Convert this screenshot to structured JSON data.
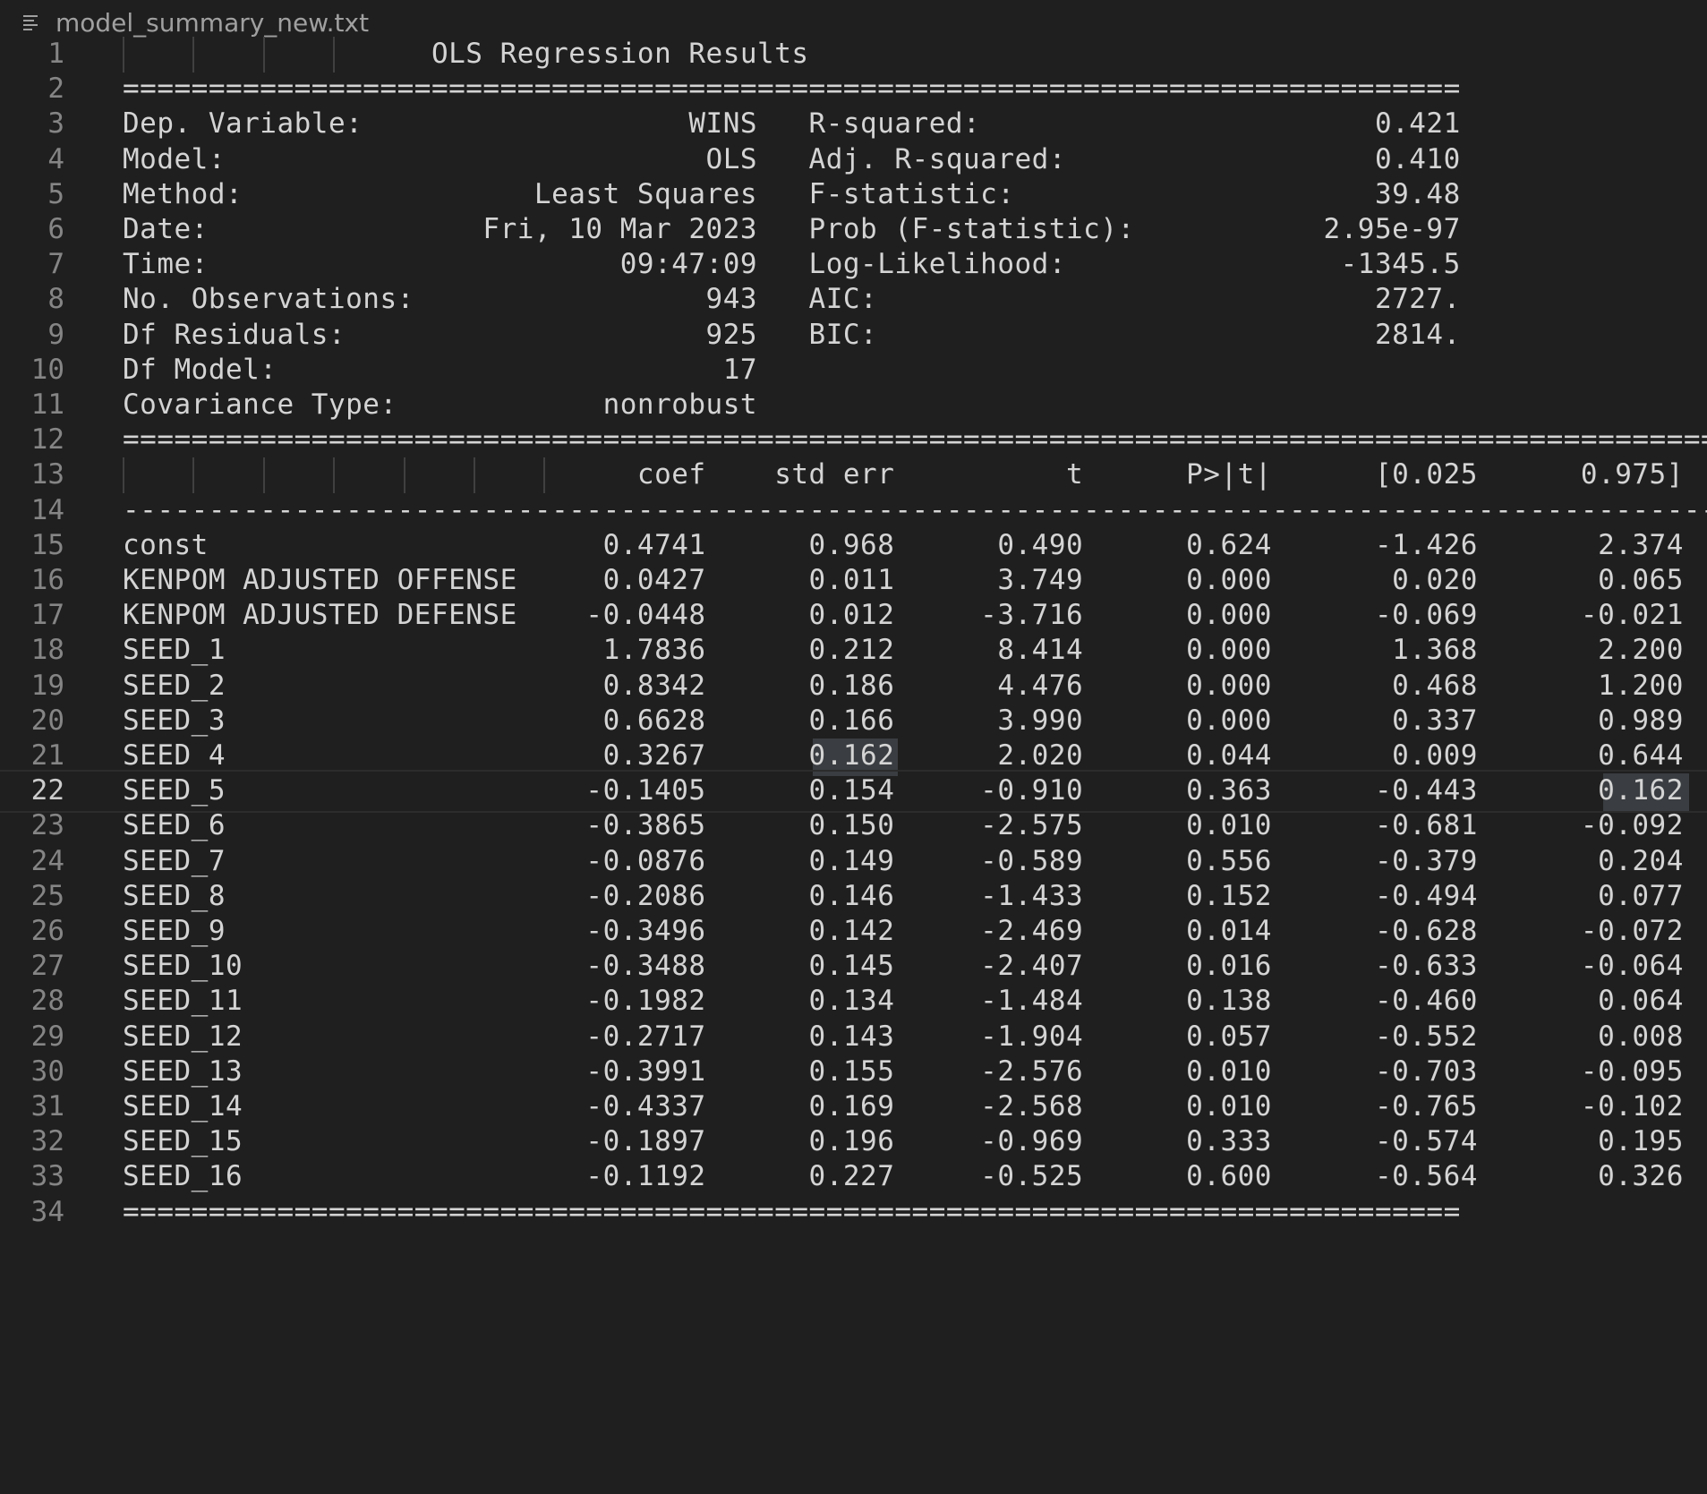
{
  "tab": {
    "icon": "lines-icon",
    "title": "model_summary_new.txt"
  },
  "editor": {
    "lines": [
      {
        "n": "1",
        "text": "                  OLS Regression Results"
      },
      {
        "n": "2",
        "text": "=============================================================================="
      },
      {
        "n": "3",
        "text": "Dep. Variable:                   WINS   R-squared:                       0.421"
      },
      {
        "n": "4",
        "text": "Model:                            OLS   Adj. R-squared:                  0.410"
      },
      {
        "n": "5",
        "text": "Method:                 Least Squares   F-statistic:                     39.48"
      },
      {
        "n": "6",
        "text": "Date:                Fri, 10 Mar 2023   Prob (F-statistic):           2.95e-97"
      },
      {
        "n": "7",
        "text": "Time:                        09:47:09   Log-Likelihood:                -1345.5"
      },
      {
        "n": "8",
        "text": "No. Observations:                 943   AIC:                             2727."
      },
      {
        "n": "9",
        "text": "Df Residuals:                     925   BIC:                             2814."
      },
      {
        "n": "10",
        "text": "Df Model:                          17"
      },
      {
        "n": "11",
        "text": "Covariance Type:            nonrobust"
      },
      {
        "n": "12",
        "text": "============================================================================================="
      },
      {
        "n": "13",
        "text": "                              coef    std err          t      P>|t|      [0.025      0.975]"
      },
      {
        "n": "14",
        "text": "---------------------------------------------------------------------------------------------"
      },
      {
        "n": "15",
        "text": "const                       0.4741      0.968      0.490      0.624      -1.426       2.374"
      },
      {
        "n": "16",
        "text": "KENPOM ADJUSTED OFFENSE     0.0427      0.011      3.749      0.000       0.020       0.065"
      },
      {
        "n": "17",
        "text": "KENPOM ADJUSTED DEFENSE    -0.0448      0.012     -3.716      0.000      -0.069      -0.021"
      },
      {
        "n": "18",
        "text": "SEED_1                      1.7836      0.212      8.414      0.000       1.368       2.200"
      },
      {
        "n": "19",
        "text": "SEED_2                      0.8342      0.186      4.476      0.000       0.468       1.200"
      },
      {
        "n": "20",
        "text": "SEED_3                      0.6628      0.166      3.990      0.000       0.337       0.989"
      },
      {
        "n": "21",
        "text": "SEED_4                      0.3267      0.162      2.020      0.044       0.009       0.644"
      },
      {
        "n": "22",
        "text": "SEED_5                     -0.1405      0.154     -0.910      0.363      -0.443       0.162"
      },
      {
        "n": "23",
        "text": "SEED_6                     -0.3865      0.150     -2.575      0.010      -0.681      -0.092"
      },
      {
        "n": "24",
        "text": "SEED_7                     -0.0876      0.149     -0.589      0.556      -0.379       0.204"
      },
      {
        "n": "25",
        "text": "SEED_8                     -0.2086      0.146     -1.433      0.152      -0.494       0.077"
      },
      {
        "n": "26",
        "text": "SEED_9                     -0.3496      0.142     -2.469      0.014      -0.628      -0.072"
      },
      {
        "n": "27",
        "text": "SEED_10                    -0.3488      0.145     -2.407      0.016      -0.633      -0.064"
      },
      {
        "n": "28",
        "text": "SEED_11                    -0.1982      0.134     -1.484      0.138      -0.460       0.064"
      },
      {
        "n": "29",
        "text": "SEED_12                    -0.2717      0.143     -1.904      0.057      -0.552       0.008"
      },
      {
        "n": "30",
        "text": "SEED_13                    -0.3991      0.155     -2.576      0.010      -0.703      -0.095"
      },
      {
        "n": "31",
        "text": "SEED_14                    -0.4337      0.169     -2.568      0.010      -0.765      -0.102"
      },
      {
        "n": "32",
        "text": "SEED_15                    -0.1897      0.196     -0.969      0.333      -0.574       0.195"
      },
      {
        "n": "33",
        "text": "SEED_16                    -0.1192      0.227     -0.525      0.600      -0.564       0.326"
      },
      {
        "n": "34",
        "text": "=============================================================================="
      }
    ],
    "current_line": "22"
  }
}
